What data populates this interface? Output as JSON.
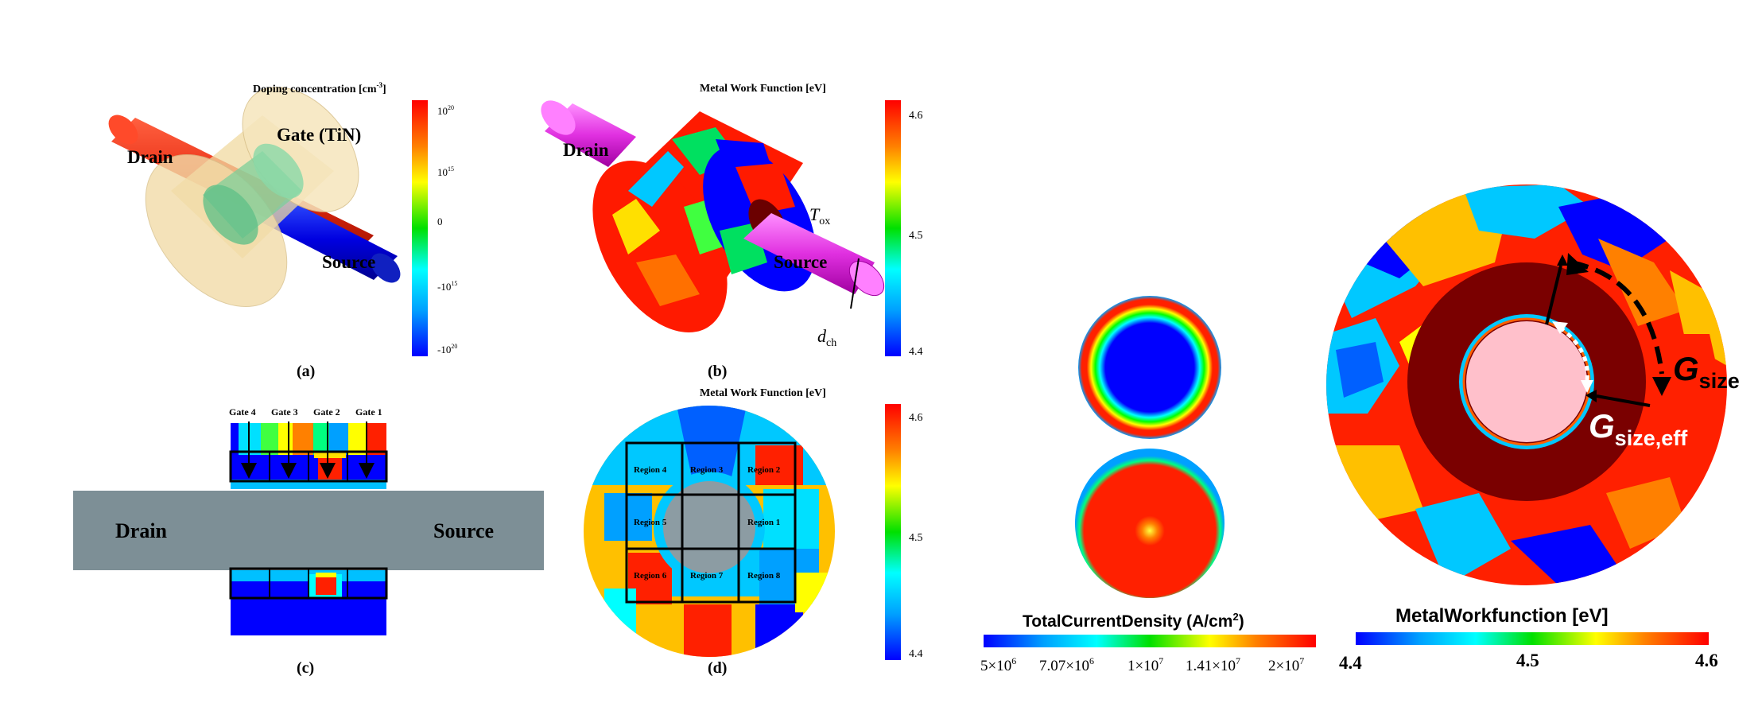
{
  "panel_a": {
    "colorbar_title": "Doping concentration [cm",
    "colorbar_title_sup": "-3",
    "colorbar_title_end": "]",
    "ticks": [
      {
        "base": "10",
        "exp": "20"
      },
      {
        "base": "10",
        "exp": "15"
      },
      {
        "base": "0",
        "exp": ""
      },
      {
        "base": "-10",
        "exp": "15"
      },
      {
        "base": "-10",
        "exp": "20"
      }
    ],
    "labels": {
      "drain": "Drain",
      "gate": "Gate (TiN)",
      "source": "Source"
    },
    "caption": "(a)"
  },
  "panel_b": {
    "colorbar_title": "Metal Work  Function  [eV]",
    "ticks": [
      "4.6",
      "4.5",
      "4.4"
    ],
    "labels": {
      "drain": "Drain",
      "source": "Source",
      "tox": "T",
      "tox_sub": "ox",
      "dch": "d",
      "dch_sub": "ch"
    },
    "caption": "(b)"
  },
  "panel_c": {
    "gate_labels": [
      "Gate 4",
      "Gate 3",
      "Gate 2",
      "Gate 1"
    ],
    "labels": {
      "drain": "Drain",
      "source": "Source"
    },
    "caption": "(c)"
  },
  "panel_d": {
    "colorbar_title": "Metal Work  Function  [eV]",
    "ticks": [
      "4.6",
      "4.5",
      "4.4"
    ],
    "regions": [
      "Region 4",
      "Region 3",
      "Region 2",
      "Region 5",
      "Region 1",
      "Region 6",
      "Region 7",
      "Region 8"
    ],
    "caption": "(d)"
  },
  "panel_current": {
    "colorbar_title": "TotalCurrentDensity (A/cm",
    "colorbar_title_sup": "2",
    "colorbar_title_end": ")",
    "ticks": [
      {
        "text": "5×10",
        "exp": "6"
      },
      {
        "text": "7.07×10",
        "exp": "6"
      },
      {
        "text": "1×10",
        "exp": "7"
      },
      {
        "text": "1.41×10",
        "exp": "7"
      },
      {
        "text": "2×10",
        "exp": "7"
      }
    ]
  },
  "panel_mwf": {
    "colorbar_title": "MetalWorkfunction [eV]",
    "ticks": [
      "4.4",
      "4.5",
      "4.6"
    ],
    "gsize": "G",
    "gsize_sub": "size",
    "gsize_eff": "G",
    "gsize_eff_sub": "size,eff"
  }
}
